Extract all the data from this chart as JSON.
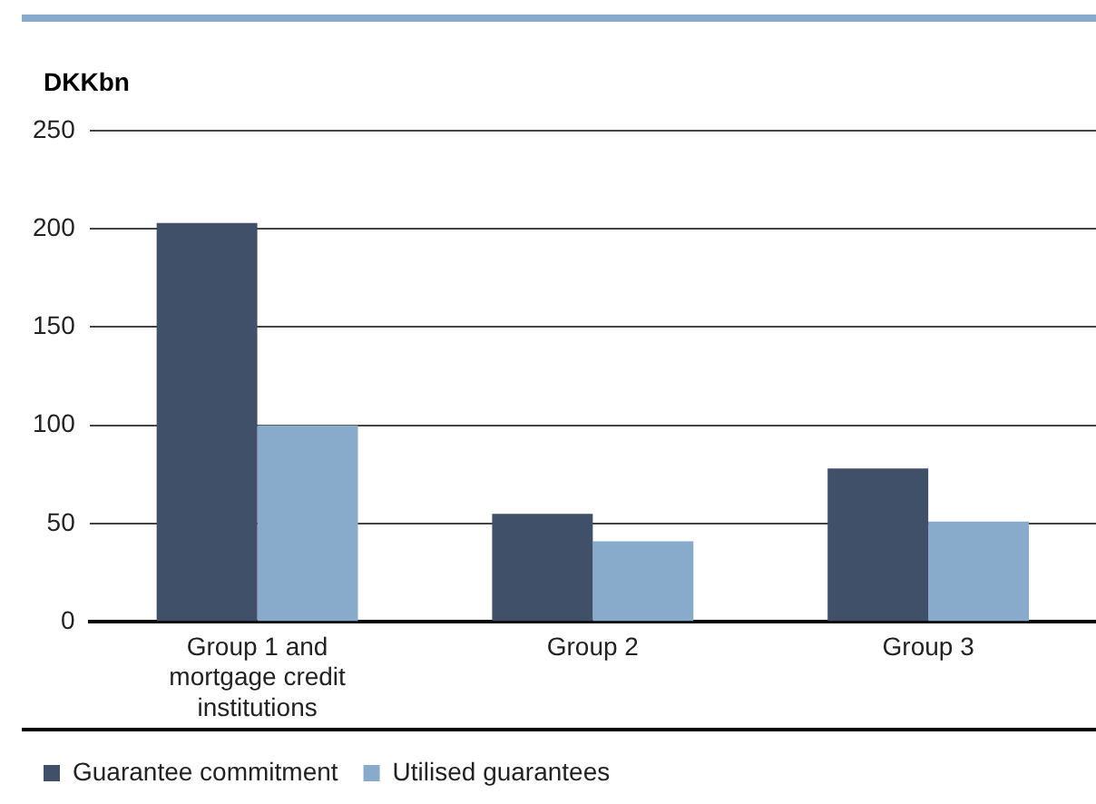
{
  "chart_data": {
    "type": "bar",
    "ylabel": "DKKbn",
    "categories": [
      "Group 1 and mortgage credit institutions",
      "Group 2",
      "Group 3"
    ],
    "series": [
      {
        "name": "Guarantee commitment",
        "color": "#3f5068",
        "values": [
          203,
          55,
          78
        ]
      },
      {
        "name": "Utilised guarantees",
        "color": "#88abcc",
        "values": [
          100,
          41,
          51
        ]
      }
    ],
    "ylim": [
      0,
      250
    ],
    "yticks": [
      0,
      50,
      100,
      150,
      200,
      250
    ],
    "grid": "y",
    "legend": "bottom"
  }
}
